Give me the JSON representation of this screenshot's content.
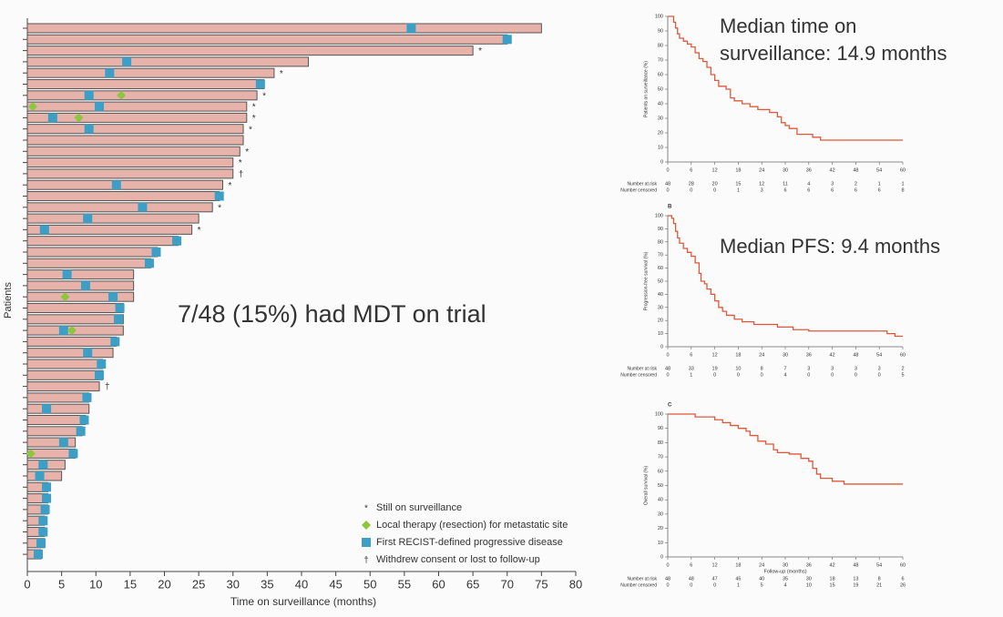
{
  "chart_data": [
    {
      "type": "swimmer",
      "annotation": [
        "7/48 (15%) had MDT on trial"
      ],
      "xlabel": "Time on surveillance (months)",
      "ylabel": "Patients",
      "xlim": [
        0,
        80
      ],
      "xticks": [
        0,
        5,
        10,
        15,
        20,
        25,
        30,
        35,
        40,
        45,
        50,
        55,
        60,
        65,
        70,
        75,
        80
      ],
      "color": "#e6b2aa",
      "progression_color": "#3d9fc6",
      "local_therapy_color": "#8cc63f",
      "values": [
        75,
        70,
        65,
        41,
        36,
        34.5,
        33.5,
        32,
        32,
        31.5,
        31.5,
        31,
        30,
        30,
        28.5,
        28,
        27,
        25,
        24,
        22,
        19,
        18,
        15.5,
        15.5,
        15.5,
        14,
        14,
        14,
        13,
        12.5,
        11,
        11,
        10.5,
        9,
        9,
        8.5,
        8,
        7,
        7,
        5.5,
        5,
        3,
        3,
        3,
        2.5,
        2.5,
        2.5,
        2
      ],
      "progression": [
        56,
        70,
        null,
        14.5,
        12,
        34,
        9,
        10.5,
        3.7,
        9,
        null,
        null,
        null,
        null,
        13,
        28,
        16.8,
        8.8,
        2.5,
        21.8,
        18.8,
        17.8,
        5.8,
        8.5,
        12.5,
        13.5,
        13.3,
        5.3,
        12.8,
        8.8,
        10.8,
        10.5,
        null,
        8.7,
        2.8,
        8.3,
        7.8,
        5.3,
        6.7,
        2.3,
        1.8,
        2.8,
        2.8,
        2.6,
        2.3,
        2.3,
        2,
        1.6
      ],
      "local_therapy": [
        null,
        null,
        null,
        null,
        null,
        null,
        13.7,
        0.8,
        7.5,
        null,
        null,
        null,
        null,
        null,
        null,
        null,
        null,
        null,
        null,
        null,
        null,
        null,
        null,
        null,
        5.5,
        null,
        null,
        6.5,
        null,
        null,
        null,
        null,
        null,
        null,
        null,
        null,
        null,
        null,
        0.5,
        null,
        null,
        null,
        null,
        null,
        null,
        null,
        null,
        null
      ],
      "status_labels": [
        null,
        null,
        "*",
        null,
        "*",
        null,
        "*",
        "*",
        "*",
        "*",
        null,
        "*",
        "*",
        "†",
        "*",
        null,
        "*",
        null,
        "*",
        null,
        null,
        null,
        null,
        null,
        null,
        null,
        null,
        null,
        null,
        null,
        null,
        null,
        "†",
        null,
        null,
        null,
        null,
        null,
        null,
        null,
        null,
        null,
        null,
        null,
        null,
        null,
        null,
        null
      ],
      "legend": [
        {
          "symbol": "*",
          "label": "Still on surveillance"
        },
        {
          "label": "Local therapy (resection) for metastatic site"
        },
        {
          "label": "First RECIST-defined progressive disease"
        },
        {
          "symbol": "†",
          "label": "Withdrew consent or lost to follow-up"
        }
      ]
    },
    {
      "type": "line",
      "annotation": [
        "Median time on",
        "surveillance: 14.9 months"
      ],
      "ylabel": "Patients on surveillance (%)",
      "color": "#e0583a",
      "xlim": [
        0,
        60
      ],
      "xticks": [
        0,
        6,
        12,
        18,
        24,
        30,
        36,
        42,
        48,
        54,
        60
      ],
      "ylim": [
        0,
        100
      ],
      "yticks": [
        0,
        10,
        20,
        30,
        40,
        50,
        60,
        70,
        80,
        90,
        100
      ],
      "x": [
        0,
        1.5,
        2,
        2.5,
        3,
        4,
        5,
        6,
        7,
        8,
        9,
        10,
        11,
        12,
        13,
        14.9,
        16,
        17,
        19,
        21,
        23,
        26,
        28,
        29,
        30,
        31,
        33,
        37,
        39,
        60
      ],
      "values": [
        100,
        96,
        92,
        88,
        85,
        83,
        81,
        79,
        75,
        71,
        69,
        65,
        60,
        56,
        52,
        50,
        44,
        42,
        40,
        38,
        36,
        34,
        31,
        27,
        25,
        23,
        19,
        17,
        15,
        15
      ],
      "risk_labels": [
        "Number at risk",
        "Number censored"
      ],
      "at_risk": [
        48,
        28,
        20,
        15,
        12,
        11,
        4,
        3,
        2,
        1,
        1
      ],
      "censored": [
        0,
        0,
        0,
        1,
        3,
        6,
        6,
        6,
        6,
        6,
        8
      ]
    },
    {
      "type": "line",
      "panel": "B",
      "annotation": [
        "Median PFS: 9.4 months"
      ],
      "ylabel": "Progression-free survival (%)",
      "color": "#e0583a",
      "xlim": [
        0,
        60
      ],
      "xticks": [
        0,
        6,
        12,
        18,
        24,
        30,
        36,
        42,
        48,
        54,
        60
      ],
      "ylim": [
        0,
        100
      ],
      "yticks": [
        0,
        10,
        20,
        30,
        40,
        50,
        60,
        70,
        80,
        90,
        100
      ],
      "x": [
        0,
        1,
        1.5,
        2,
        2.5,
        3,
        4,
        5,
        6,
        7,
        8,
        8.5,
        9.4,
        10,
        11,
        12,
        13,
        14,
        15,
        17,
        19,
        22,
        28,
        32,
        36,
        56,
        58,
        60
      ],
      "values": [
        100,
        98,
        94,
        88,
        83,
        79,
        75,
        72,
        69,
        64,
        56,
        50,
        48,
        44,
        40,
        35,
        30,
        27,
        24,
        21,
        19,
        17,
        15,
        13,
        12,
        10,
        8,
        8
      ],
      "risk_labels": [
        "Number at risk",
        "Number censored"
      ],
      "at_risk": [
        48,
        33,
        19,
        10,
        8,
        7,
        3,
        3,
        3,
        3,
        2
      ],
      "censored": [
        0,
        1,
        0,
        0,
        0,
        4,
        0,
        0,
        0,
        0,
        5
      ]
    },
    {
      "type": "line",
      "panel": "C",
      "xlabel": "Follow-up (months)",
      "ylabel": "Overall survival (%)",
      "color": "#e0583a",
      "xlim": [
        0,
        60
      ],
      "xticks": [
        0,
        6,
        12,
        18,
        24,
        30,
        36,
        42,
        48,
        54,
        60
      ],
      "ylim": [
        0,
        100
      ],
      "yticks": [
        0,
        10,
        20,
        30,
        40,
        50,
        60,
        70,
        80,
        90,
        100
      ],
      "x": [
        0,
        7,
        12,
        14,
        16,
        18,
        20,
        21,
        23,
        25,
        27,
        28,
        31,
        34,
        36,
        37,
        38,
        39,
        42,
        45,
        60
      ],
      "values": [
        100,
        98,
        96,
        94,
        92,
        90,
        88,
        85,
        81,
        79,
        75,
        73,
        72,
        69,
        67,
        62,
        58,
        55,
        53,
        51,
        51
      ],
      "risk_labels": [
        "Number at risk",
        "Number censored"
      ],
      "at_risk": [
        48,
        48,
        47,
        45,
        40,
        35,
        30,
        18,
        13,
        8,
        6
      ],
      "censored": [
        0,
        0,
        0,
        1,
        5,
        4,
        10,
        15,
        19,
        21,
        26
      ]
    }
  ]
}
